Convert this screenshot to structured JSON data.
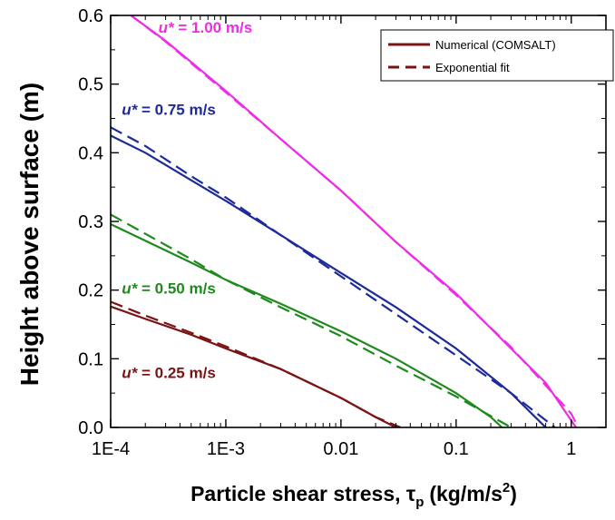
{
  "chart_data": {
    "type": "line",
    "xlabel": "Particle shear stress, τ",
    "xlabel_sub": "p",
    "xlabel_unit": "(kg/m/s",
    "xlabel_sup": "2",
    "xlabel_close": ")",
    "ylabel": "Height above surface (m)",
    "xscale": "log",
    "xlim": [
      0.0001,
      2
    ],
    "ylim": [
      0,
      0.6
    ],
    "x_ticks": [
      {
        "value": 0.0001,
        "label": "1E-4"
      },
      {
        "value": 0.001,
        "label": "1E-3"
      },
      {
        "value": 0.01,
        "label": "0.01"
      },
      {
        "value": 0.1,
        "label": "0.1"
      },
      {
        "value": 1,
        "label": "1"
      }
    ],
    "y_ticks": [
      {
        "value": 0.0,
        "label": "0.0"
      },
      {
        "value": 0.1,
        "label": "0.1"
      },
      {
        "value": 0.2,
        "label": "0.2"
      },
      {
        "value": 0.3,
        "label": "0.3"
      },
      {
        "value": 0.4,
        "label": "0.4"
      },
      {
        "value": 0.5,
        "label": "0.5"
      },
      {
        "value": 0.6,
        "label": "0.6"
      }
    ],
    "grid": false,
    "legend_position": "top-right",
    "legend": [
      {
        "label": "Numerical (COMSALT)",
        "style": "solid",
        "color": "#7a1414"
      },
      {
        "label": "Exponential fit",
        "style": "dashed",
        "color": "#7a1414"
      }
    ],
    "series": [
      {
        "name": "u* = 1.00 m/s",
        "label_prefix": "u*",
        "label_suffix": " = 1.00 m/s",
        "label_x": 0.00026,
        "label_y": 0.575,
        "color": "#ee2ce6",
        "numerical": {
          "x": [
            0.00015,
            0.0003,
            0.001,
            0.003,
            0.01,
            0.03,
            0.1,
            0.3,
            0.6,
            1.0,
            1.1
          ],
          "y": [
            0.6,
            0.563,
            0.49,
            0.42,
            0.345,
            0.27,
            0.195,
            0.115,
            0.065,
            0.01,
            0.0
          ]
        },
        "fit": {
          "x": [
            0.00015,
            0.0003,
            0.001,
            0.003,
            0.01,
            0.03,
            0.1,
            0.3,
            1.0,
            1.15
          ],
          "y": [
            0.6,
            0.562,
            0.488,
            0.42,
            0.345,
            0.27,
            0.193,
            0.117,
            0.02,
            0.0
          ]
        }
      },
      {
        "name": "u* = 0.75 m/s",
        "label_prefix": "u*",
        "label_suffix": " = 0.75 m/s",
        "label_x": 0.000125,
        "label_y": 0.455,
        "color": "#1c2a9a",
        "numerical": {
          "x": [
            0.0001,
            0.0002,
            0.0005,
            0.001,
            0.003,
            0.01,
            0.03,
            0.1,
            0.3,
            0.6
          ],
          "y": [
            0.425,
            0.4,
            0.36,
            0.33,
            0.28,
            0.225,
            0.175,
            0.115,
            0.05,
            0.0
          ]
        },
        "fit": {
          "x": [
            0.0001,
            0.0002,
            0.0005,
            0.001,
            0.003,
            0.01,
            0.03,
            0.1,
            0.3,
            0.72
          ],
          "y": [
            0.437,
            0.41,
            0.366,
            0.335,
            0.28,
            0.22,
            0.165,
            0.105,
            0.05,
            0.0
          ]
        }
      },
      {
        "name": "u* = 0.50 m/s",
        "label_prefix": "u*",
        "label_suffix": " = 0.50 m/s",
        "label_x": 0.000125,
        "label_y": 0.195,
        "color": "#1e8a1e",
        "numerical": {
          "x": [
            0.0001,
            0.0002,
            0.0005,
            0.001,
            0.003,
            0.01,
            0.03,
            0.1,
            0.2,
            0.25
          ],
          "y": [
            0.296,
            0.272,
            0.24,
            0.215,
            0.18,
            0.14,
            0.1,
            0.05,
            0.015,
            0.0
          ]
        },
        "fit": {
          "x": [
            0.0001,
            0.0002,
            0.0005,
            0.001,
            0.003,
            0.01,
            0.03,
            0.1,
            0.3
          ],
          "y": [
            0.31,
            0.282,
            0.245,
            0.215,
            0.175,
            0.133,
            0.09,
            0.045,
            0.0
          ]
        }
      },
      {
        "name": "u* = 0.25 m/s",
        "label_prefix": "u*",
        "label_suffix": " = 0.25 m/s",
        "label_x": 0.000125,
        "label_y": 0.072,
        "color": "#7a1414",
        "numerical": {
          "x": [
            0.0001,
            0.0002,
            0.0005,
            0.001,
            0.003,
            0.01,
            0.02,
            0.03
          ],
          "y": [
            0.176,
            0.158,
            0.135,
            0.115,
            0.085,
            0.043,
            0.015,
            0.0
          ]
        },
        "fit": {
          "x": [
            0.0001,
            0.0002,
            0.0005,
            0.001,
            0.003,
            0.01,
            0.02,
            0.033
          ],
          "y": [
            0.183,
            0.163,
            0.138,
            0.118,
            0.085,
            0.043,
            0.015,
            0.0
          ]
        }
      }
    ]
  }
}
